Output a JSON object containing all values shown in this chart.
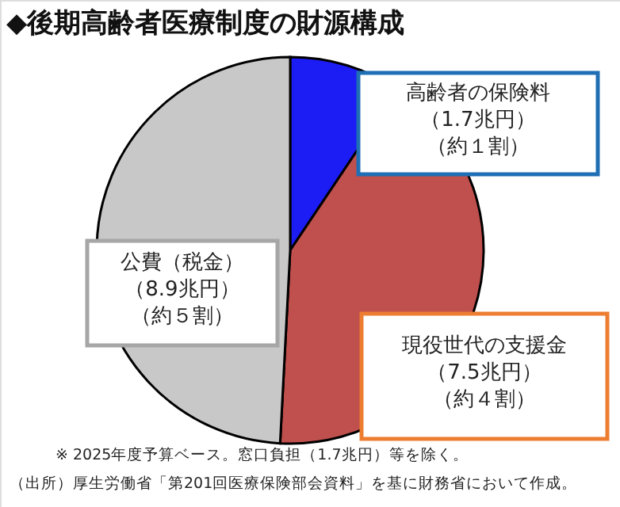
{
  "chart_data": {
    "type": "pie",
    "title": "◆後期高齢者医療制度の財源構成",
    "categories": [
      "高齢者の保険料",
      "現役世代の支援金",
      "公費（税金）"
    ],
    "values": [
      1.7,
      7.5,
      8.9
    ],
    "value_labels": [
      "（1.7兆円）",
      "（7.5兆円）",
      "（8.9兆円）"
    ],
    "colors": [
      "#1c1cf5",
      "#c0504d",
      "#c8c8c8"
    ],
    "annotations": [
      {
        "text": "（約１割）",
        "x": "高齢者の保険料"
      },
      {
        "text": "（約４割）",
        "x": "現役世代の支援金"
      },
      {
        "text": "（約５割）",
        "x": "公費（税金）"
      },
      "※ 2025年度予算ベース。窓口負担（1.7兆円）等を除く。",
      "（出所）厚生労働省「第201回医療保険部会資料」を基に財務省において作成。"
    ]
  }
}
